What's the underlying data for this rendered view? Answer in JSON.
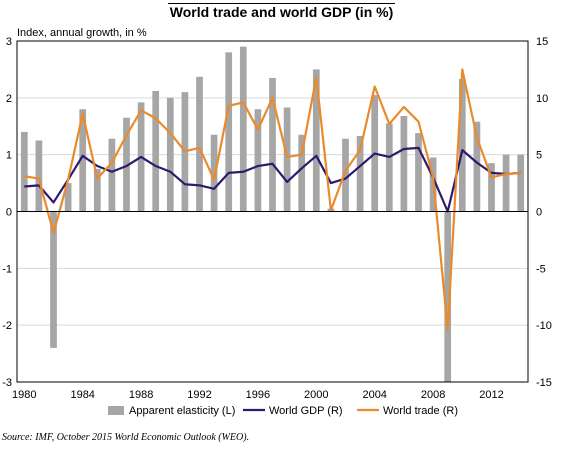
{
  "chart_data": {
    "type": "bar+line",
    "title": "World trade and world GDP (in %)",
    "subtitle": "Index, annual growth, in %",
    "x": [
      1980,
      1981,
      1982,
      1983,
      1984,
      1985,
      1986,
      1987,
      1988,
      1989,
      1990,
      1991,
      1992,
      1993,
      1994,
      1995,
      1996,
      1997,
      1998,
      1999,
      2000,
      2001,
      2002,
      2003,
      2004,
      2005,
      2006,
      2007,
      2008,
      2009,
      2010,
      2011,
      2012,
      2013,
      2014
    ],
    "x_ticks": [
      1980,
      1984,
      1988,
      1992,
      1996,
      2000,
      2004,
      2008,
      2012
    ],
    "y_left_lim": [
      -3,
      3
    ],
    "y_left_ticks": [
      -3,
      -2,
      -1,
      0,
      1,
      2,
      3
    ],
    "y_right_lim": [
      -15,
      15
    ],
    "y_right_ticks": [
      -15,
      -10,
      -5,
      0,
      5,
      10,
      15
    ],
    "grid": "horizontal",
    "legend_position": "bottom",
    "series": [
      {
        "name": "Apparent elasticity (L)",
        "kind": "bar",
        "axis": "left",
        "color": "#a6a6a6",
        "values": [
          1.4,
          1.25,
          -2.4,
          0.5,
          1.8,
          0.75,
          1.28,
          1.65,
          1.92,
          2.12,
          2.0,
          2.1,
          2.37,
          1.35,
          2.8,
          2.9,
          1.8,
          2.35,
          1.83,
          1.35,
          2.5,
          0.05,
          1.28,
          1.33,
          2.05,
          1.55,
          1.68,
          1.38,
          0.95,
          -3.0,
          2.33,
          1.58,
          0.85,
          1.0,
          1.0
        ]
      },
      {
        "name": "World GDP (R)",
        "kind": "line",
        "axis": "right",
        "color": "#2e1a6e",
        "values": [
          2.2,
          2.3,
          0.8,
          2.8,
          4.9,
          4.0,
          3.5,
          4.0,
          4.8,
          4.0,
          3.5,
          2.4,
          2.3,
          2.0,
          3.4,
          3.5,
          4.0,
          4.2,
          2.6,
          3.8,
          4.9,
          2.5,
          2.9,
          4.0,
          5.1,
          4.8,
          5.5,
          5.6,
          3.0,
          0.0,
          5.4,
          4.3,
          3.4,
          3.3,
          3.4
        ]
      },
      {
        "name": "World trade (R)",
        "kind": "line",
        "axis": "right",
        "color": "#e98b2c",
        "values": [
          3.1,
          2.9,
          -1.9,
          2.8,
          8.6,
          2.9,
          4.3,
          6.7,
          8.9,
          8.2,
          6.9,
          5.3,
          5.6,
          2.8,
          9.3,
          9.6,
          7.2,
          10.0,
          4.8,
          5.0,
          11.8,
          0.1,
          3.6,
          5.4,
          11.0,
          7.7,
          9.2,
          7.9,
          3.0,
          -10.4,
          12.5,
          6.5,
          3.0,
          3.3,
          3.4
        ]
      }
    ],
    "source": "Source: IMF, October 2015 World Economic Outlook (WEO)."
  }
}
